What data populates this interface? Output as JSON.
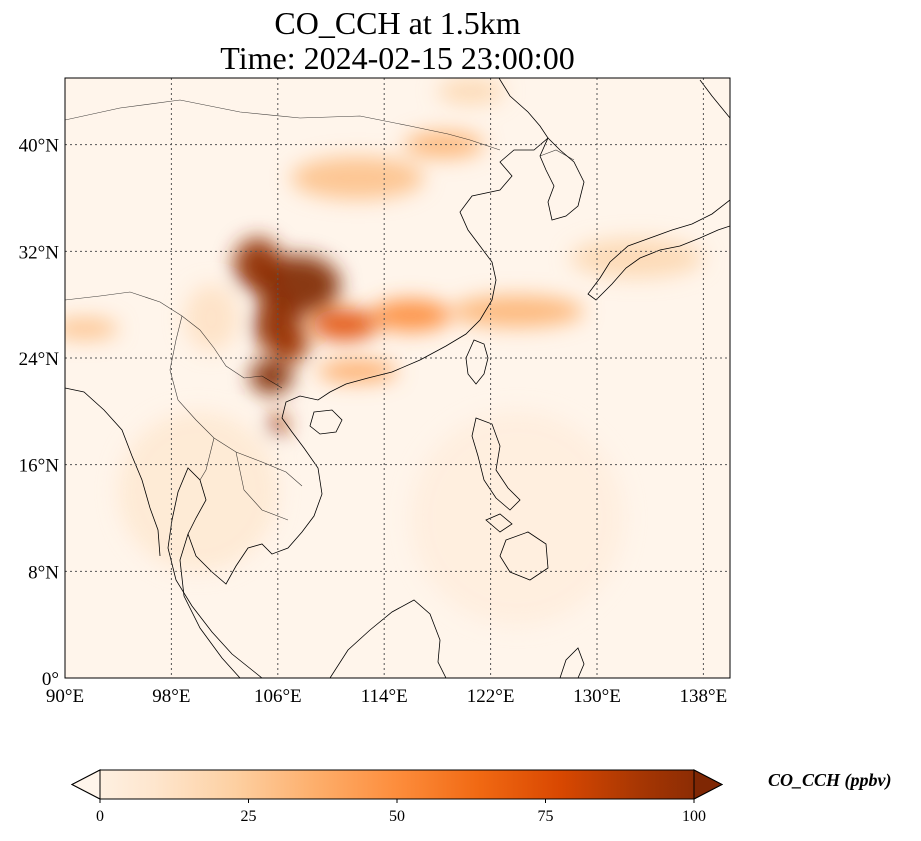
{
  "title": {
    "line1": "CO_CCH at 1.5km",
    "line2": "Time: 2024-02-15 23:00:00"
  },
  "map": {
    "lon_range": [
      90,
      140
    ],
    "lat_range": [
      0,
      45
    ],
    "x_ticks": [
      {
        "value": 90,
        "label": "90°E"
      },
      {
        "value": 98,
        "label": "98°E"
      },
      {
        "value": 106,
        "label": "106°E"
      },
      {
        "value": 114,
        "label": "114°E"
      },
      {
        "value": 122,
        "label": "122°E"
      },
      {
        "value": 130,
        "label": "130°E"
      },
      {
        "value": 138,
        "label": "138°E"
      }
    ],
    "y_ticks": [
      {
        "value": 0,
        "label": "0°"
      },
      {
        "value": 8,
        "label": "8°N"
      },
      {
        "value": 16,
        "label": "16°N"
      },
      {
        "value": 24,
        "label": "24°N"
      },
      {
        "value": 32,
        "label": "32°N"
      },
      {
        "value": 40,
        "label": "40°N"
      }
    ],
    "gridlines": true
  },
  "colorbar": {
    "label": "CO_CCH (ppbv)",
    "min": 0,
    "max": 100,
    "extend": "both",
    "ticks": [
      {
        "value": 0,
        "label": "0"
      },
      {
        "value": 25,
        "label": "25"
      },
      {
        "value": 50,
        "label": "50"
      },
      {
        "value": 75,
        "label": "75"
      },
      {
        "value": 100,
        "label": "100"
      }
    ],
    "colors": [
      "#fff5eb",
      "#fee6ce",
      "#fdd0a2",
      "#fdae6b",
      "#fd8d3c",
      "#f16913",
      "#d94801",
      "#a63603",
      "#7f2704"
    ]
  },
  "plumes": [
    {
      "lon": 107.5,
      "lat": 29.5,
      "rlon": 3.2,
      "rlat": 2.2,
      "value": 100
    },
    {
      "lon": 104.5,
      "lat": 31.0,
      "rlon": 1.8,
      "rlat": 2.0,
      "value": 95
    },
    {
      "lon": 106.0,
      "lat": 26.5,
      "rlon": 1.8,
      "rlat": 2.2,
      "value": 95
    },
    {
      "lon": 107.0,
      "lat": 25.0,
      "rlon": 1.3,
      "rlat": 1.3,
      "value": 90
    },
    {
      "lon": 105.5,
      "lat": 22.6,
      "rlon": 1.6,
      "rlat": 1.3,
      "value": 100
    },
    {
      "lon": 106.0,
      "lat": 19.0,
      "rlon": 0.7,
      "rlat": 0.8,
      "value": 90
    },
    {
      "lon": 111.0,
      "lat": 26.5,
      "rlon": 2.5,
      "rlat": 1.2,
      "value": 70
    },
    {
      "lon": 116.0,
      "lat": 27.2,
      "rlon": 3.0,
      "rlat": 1.2,
      "value": 50
    },
    {
      "lon": 124.0,
      "lat": 27.5,
      "rlon": 5.0,
      "rlat": 1.2,
      "value": 35
    },
    {
      "lon": 133.0,
      "lat": 31.5,
      "rlon": 5.0,
      "rlat": 1.5,
      "value": 20
    },
    {
      "lon": 112.0,
      "lat": 23.0,
      "rlon": 3.0,
      "rlat": 0.8,
      "value": 40
    },
    {
      "lon": 112.0,
      "lat": 37.5,
      "rlon": 5.0,
      "rlat": 1.6,
      "value": 30
    },
    {
      "lon": 118.5,
      "lat": 40.0,
      "rlon": 3.0,
      "rlat": 1.0,
      "value": 35
    },
    {
      "lon": 120.5,
      "lat": 44.0,
      "rlon": 2.5,
      "rlat": 1.0,
      "value": 20
    },
    {
      "lon": 91.5,
      "lat": 26.2,
      "rlon": 2.5,
      "rlat": 0.8,
      "value": 30
    },
    {
      "lon": 101.0,
      "lat": 27.0,
      "rlon": 2.0,
      "rlat": 2.5,
      "value": 15
    },
    {
      "lon": 100.0,
      "lat": 14.0,
      "rlon": 6.0,
      "rlat": 6.0,
      "value": 10
    },
    {
      "lon": 124.0,
      "lat": 12.0,
      "rlon": 8.0,
      "rlat": 8.0,
      "value": 6
    }
  ]
}
